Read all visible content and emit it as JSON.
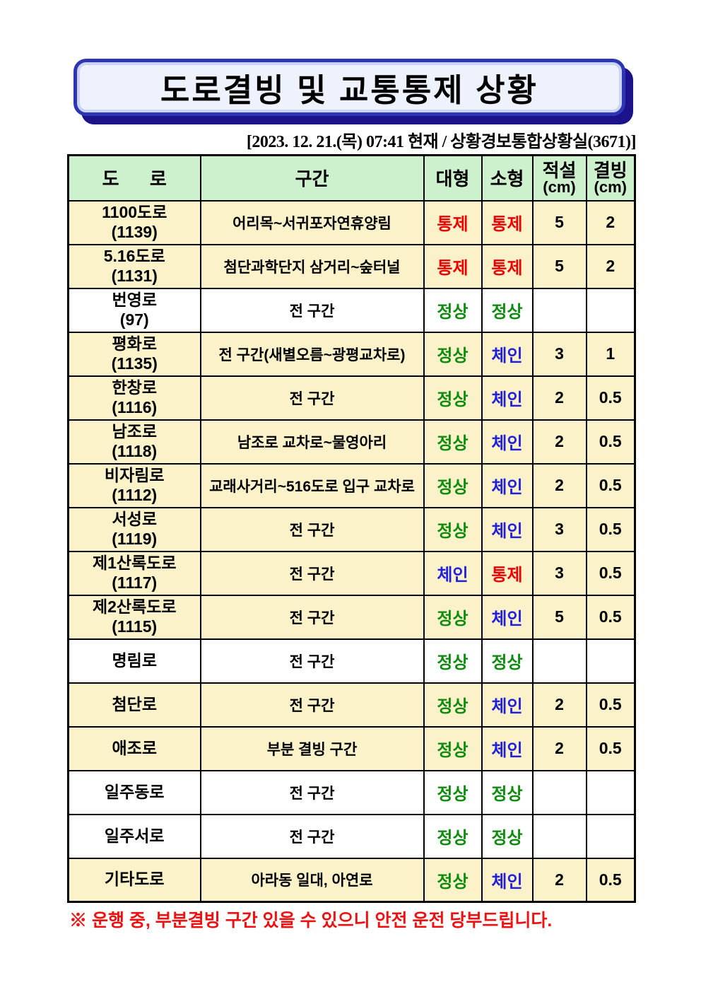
{
  "title": "도로결빙 및 교통통제 상황",
  "subtitle": "[2023. 12. 21.(목) 07:41 현재 / 상황경보통합상황실(3671)]",
  "table": {
    "headers": {
      "road": "도      로",
      "section": "구간",
      "large": "대형",
      "small": "소형",
      "snow": "적설",
      "snow_unit": "(cm)",
      "ice": "결빙",
      "ice_unit": "(cm)"
    },
    "rows": [
      {
        "road": "1100도로",
        "road_no": "(1139)",
        "section": "어리목~서귀포자연휴양림",
        "large": "통제",
        "large_type": "control",
        "small": "통제",
        "small_type": "control",
        "snow": "5",
        "ice": "2",
        "highlight": true
      },
      {
        "road": "5.16도로",
        "road_no": "(1131)",
        "section": "첨단과학단지 삼거리~숲터널",
        "large": "통제",
        "large_type": "control",
        "small": "통제",
        "small_type": "control",
        "snow": "5",
        "ice": "2",
        "highlight": true
      },
      {
        "road": "번영로",
        "road_no": "(97)",
        "section": "전 구간",
        "large": "정상",
        "large_type": "normal",
        "small": "정상",
        "small_type": "normal",
        "snow": "",
        "ice": "",
        "highlight": false
      },
      {
        "road": "평화로",
        "road_no": "(1135)",
        "section": "전 구간(새별오름~광평교차로)",
        "large": "정상",
        "large_type": "normal",
        "small": "체인",
        "small_type": "chain",
        "snow": "3",
        "ice": "1",
        "highlight": true
      },
      {
        "road": "한창로",
        "road_no": "(1116)",
        "section": "전 구간",
        "large": "정상",
        "large_type": "normal",
        "small": "체인",
        "small_type": "chain",
        "snow": "2",
        "ice": "0.5",
        "highlight": true
      },
      {
        "road": "남조로",
        "road_no": "(1118)",
        "section": "남조로 교차로~물영아리",
        "large": "정상",
        "large_type": "normal",
        "small": "체인",
        "small_type": "chain",
        "snow": "2",
        "ice": "0.5",
        "highlight": true
      },
      {
        "road": "비자림로",
        "road_no": "(1112)",
        "section": "교래사거리~516도로 입구 교차로",
        "large": "정상",
        "large_type": "normal",
        "small": "체인",
        "small_type": "chain",
        "snow": "2",
        "ice": "0.5",
        "highlight": true
      },
      {
        "road": "서성로",
        "road_no": "(1119)",
        "section": "전 구간",
        "large": "정상",
        "large_type": "normal",
        "small": "체인",
        "small_type": "chain",
        "snow": "3",
        "ice": "0.5",
        "highlight": true
      },
      {
        "road": "제1산록도로",
        "road_no": "(1117)",
        "section": "전 구간",
        "large": "체인",
        "large_type": "chain",
        "small": "통제",
        "small_type": "control",
        "snow": "3",
        "ice": "0.5",
        "highlight": true
      },
      {
        "road": "제2산록도로",
        "road_no": "(1115)",
        "section": "전 구간",
        "large": "정상",
        "large_type": "normal",
        "small": "체인",
        "small_type": "chain",
        "snow": "5",
        "ice": "0.5",
        "highlight": true
      },
      {
        "road": "명림로",
        "road_no": "",
        "section": "전 구간",
        "large": "정상",
        "large_type": "normal",
        "small": "정상",
        "small_type": "normal",
        "snow": "",
        "ice": "",
        "highlight": false
      },
      {
        "road": "첨단로",
        "road_no": "",
        "section": "전 구간",
        "large": "정상",
        "large_type": "normal",
        "small": "체인",
        "small_type": "chain",
        "snow": "2",
        "ice": "0.5",
        "highlight": true
      },
      {
        "road": "애조로",
        "road_no": "",
        "section": "부분 결빙 구간",
        "large": "정상",
        "large_type": "normal",
        "small": "체인",
        "small_type": "chain",
        "snow": "2",
        "ice": "0.5",
        "highlight": true
      },
      {
        "road": "일주동로",
        "road_no": "",
        "section": "전 구간",
        "large": "정상",
        "large_type": "normal",
        "small": "정상",
        "small_type": "normal",
        "snow": "",
        "ice": "",
        "highlight": false
      },
      {
        "road": "일주서로",
        "road_no": "",
        "section": "전 구간",
        "large": "정상",
        "large_type": "normal",
        "small": "정상",
        "small_type": "normal",
        "snow": "",
        "ice": "",
        "highlight": false
      },
      {
        "road": "기타도로",
        "road_no": "",
        "section": "아라동 일대, 아연로",
        "large": "정상",
        "large_type": "normal",
        "small": "체인",
        "small_type": "chain",
        "snow": "2",
        "ice": "0.5",
        "highlight": true
      }
    ]
  },
  "footer_note": "※ 운행 중, 부분결빙 구간 있을 수 있으니 안전 운전 당부드립니다.",
  "colors": {
    "control": "#ee0000",
    "normal": "#0e8c0e",
    "chain": "#2121dd",
    "header_bg": "#cdf1cd",
    "row_highlight_bg": "#fcf2ca",
    "row_normal_bg": "#ffffff",
    "title_border": "#2e35b5",
    "title_shadow": "#1c128a",
    "title_fill": "#edf2fc",
    "footer_red": "#ee1111"
  }
}
